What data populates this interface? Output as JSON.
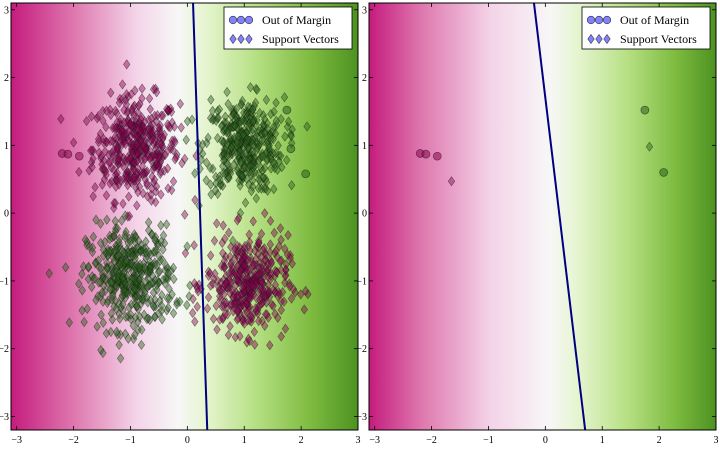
{
  "chart_data": [
    {
      "type": "scatter",
      "xlim": [
        -3.1,
        3.0
      ],
      "ylim": [
        -3.2,
        3.1
      ],
      "x_ticks": [
        -3,
        -2,
        -1,
        0,
        1,
        2,
        3
      ],
      "y_ticks": [
        -3,
        -2,
        -1,
        0,
        1,
        2,
        3
      ],
      "background": "diverging decision-function field, magenta (negative) to green (positive)",
      "boundary": {
        "p1": [
          0.1,
          3.1
        ],
        "p2": [
          0.35,
          -3.2
        ]
      },
      "legend": {
        "position": "upper-right",
        "entries": [
          {
            "label": "Out of Margin",
            "marker": "circle"
          },
          {
            "label": "Support Vectors",
            "marker": "diamond"
          }
        ]
      },
      "support_vector_clusters": [
        {
          "center": [
            -0.9,
            0.95
          ],
          "spread": 0.38,
          "n": 420,
          "class": "magenta"
        },
        {
          "center": [
            1.0,
            1.0
          ],
          "spread": 0.35,
          "n": 380,
          "class": "green"
        },
        {
          "center": [
            -1.0,
            -0.95
          ],
          "spread": 0.38,
          "n": 420,
          "class": "green"
        },
        {
          "center": [
            1.05,
            -1.05
          ],
          "spread": 0.36,
          "n": 400,
          "class": "magenta"
        }
      ],
      "out_of_margin_points": [
        {
          "x": -2.2,
          "y": 0.88,
          "class": "magenta"
        },
        {
          "x": -2.1,
          "y": 0.87,
          "class": "magenta"
        },
        {
          "x": -1.9,
          "y": 0.84,
          "class": "magenta"
        },
        {
          "x": 1.75,
          "y": 1.52,
          "class": "green"
        },
        {
          "x": 1.82,
          "y": 0.95,
          "class": "green"
        },
        {
          "x": 2.08,
          "y": 0.58,
          "class": "green"
        }
      ]
    },
    {
      "type": "scatter",
      "xlim": [
        -3.1,
        3.0
      ],
      "ylim": [
        -3.2,
        3.1
      ],
      "x_ticks": [
        -3,
        -2,
        -1,
        0,
        1,
        2,
        3
      ],
      "y_ticks": [
        -3,
        -2,
        -1,
        0,
        1,
        2,
        3
      ],
      "background": "diverging decision-function field, magenta (negative) to green (positive)",
      "boundary": {
        "p1": [
          -0.2,
          3.1
        ],
        "p2": [
          0.7,
          -3.2
        ]
      },
      "legend": {
        "position": "upper-right",
        "entries": [
          {
            "label": "Out of Margin",
            "marker": "circle"
          },
          {
            "label": "Support Vectors",
            "marker": "diamond"
          }
        ]
      },
      "support_vector_clusters": [],
      "support_vectors": [
        {
          "x": -1.65,
          "y": 0.47,
          "class": "magenta"
        },
        {
          "x": 1.83,
          "y": 0.98,
          "class": "green"
        }
      ],
      "out_of_margin_points": [
        {
          "x": -2.2,
          "y": 0.88,
          "class": "magenta"
        },
        {
          "x": -2.1,
          "y": 0.87,
          "class": "magenta"
        },
        {
          "x": -1.9,
          "y": 0.84,
          "class": "magenta"
        },
        {
          "x": 1.75,
          "y": 1.52,
          "class": "green"
        },
        {
          "x": 2.08,
          "y": 0.6,
          "class": "green"
        }
      ]
    }
  ],
  "colors": {
    "magenta_dark": "#c51b7d",
    "white": "#f7f7f7",
    "green_dark": "#4d9221",
    "boundary": "#000080",
    "magenta_points": "#8e0152",
    "green_points": "#276419",
    "legend_marker": "#6b6bff"
  }
}
